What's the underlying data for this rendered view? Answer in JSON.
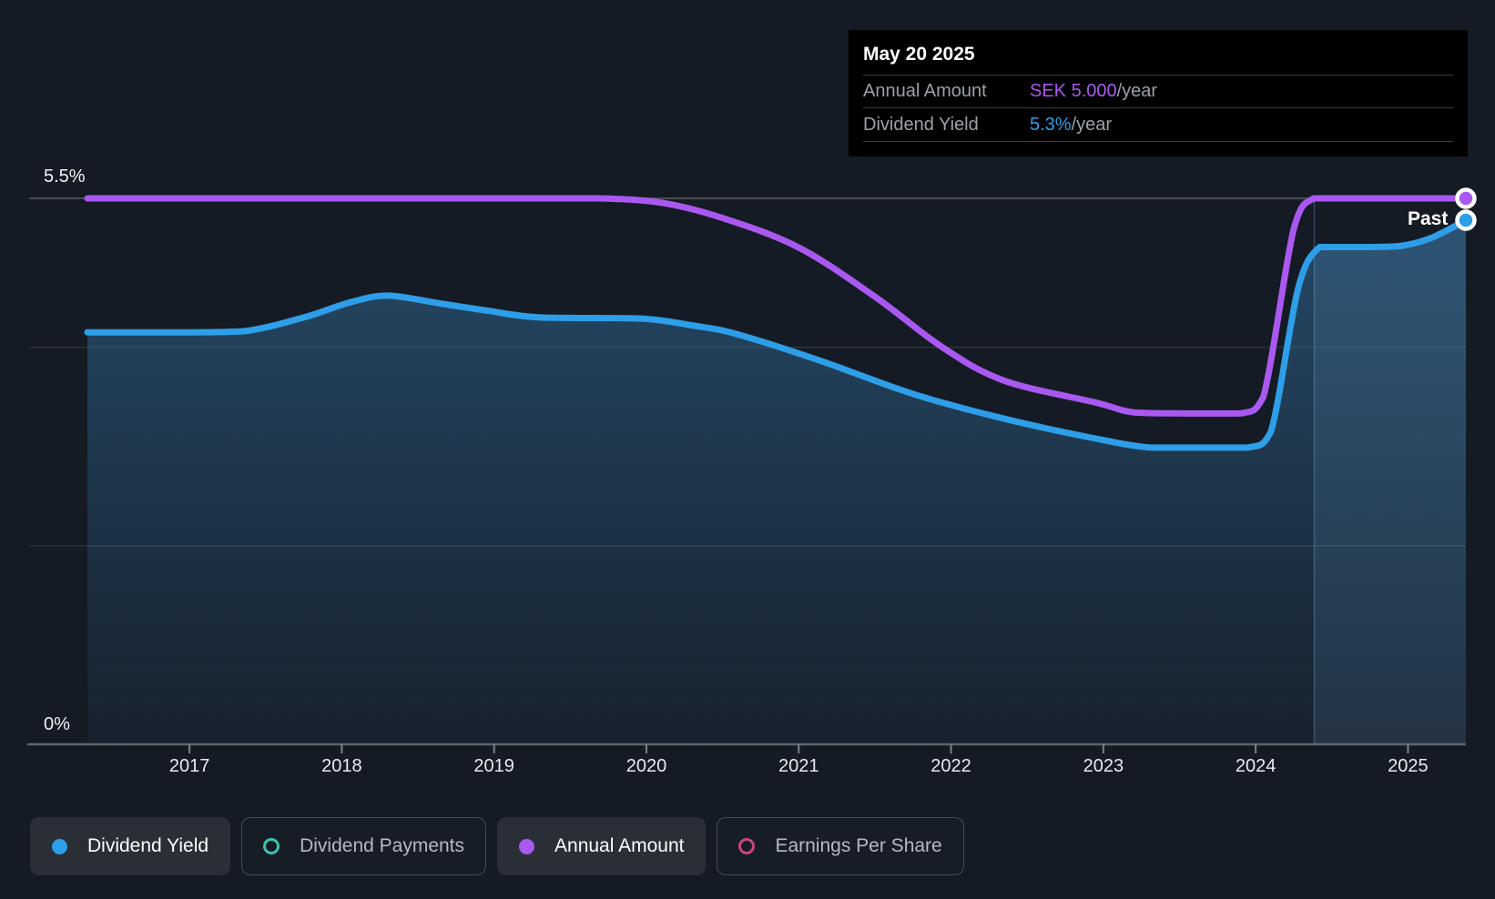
{
  "y_axis": {
    "top_label": "5.5%",
    "zero_label": "0%"
  },
  "tooltip": {
    "date": "May 20 2025",
    "rows": [
      {
        "label": "Annual Amount",
        "value": "SEK 5.000",
        "suffix": "/year",
        "color": "#A958F0"
      },
      {
        "label": "Dividend Yield",
        "value": "5.3%",
        "suffix": "/year",
        "color": "#2E9EE8"
      }
    ]
  },
  "legend": {
    "items": [
      {
        "label": "Dividend Yield",
        "color": "#2E9EE8",
        "marker": "filled",
        "active": true
      },
      {
        "label": "Dividend Payments",
        "color": "#3EC3B1",
        "marker": "ring",
        "active": false
      },
      {
        "label": "Annual Amount",
        "color": "#A958F0",
        "marker": "filled",
        "active": true
      },
      {
        "label": "Earnings Per Share",
        "color": "#C94580",
        "marker": "ring",
        "active": false
      }
    ]
  },
  "chart_data": {
    "type": "area",
    "past_label": "Past",
    "x_domain": [
      2016.33,
      2025.38
    ],
    "x_ticks": [
      "2017",
      "2018",
      "2019",
      "2020",
      "2021",
      "2022",
      "2023",
      "2024",
      "2025"
    ],
    "x_tick_values": [
      2017,
      2018,
      2019,
      2020,
      2021,
      2022,
      2023,
      2024,
      2025
    ],
    "axes": {
      "pct": {
        "min": 0,
        "max": 5.5
      },
      "sek": {
        "min": 0,
        "max": 5.0
      }
    },
    "y_tick_labels": [
      {
        "label": "5.5%",
        "value": 5.5
      },
      {
        "label": "0%",
        "value": 0
      }
    ],
    "gridlines": [
      {
        "value": 5.5,
        "strong": true
      },
      {
        "value": 4.0,
        "strong": false
      },
      {
        "value": 2.0,
        "strong": false
      }
    ],
    "divider_x": 2024.385,
    "hover_point": {
      "date": "May 20 2025",
      "annual_amount_sek": 5.0,
      "dividend_yield_pct": 5.3
    },
    "series": [
      {
        "name": "Dividend Yield",
        "unit": "%",
        "scale": "pct",
        "color": "#2E9EE8",
        "area": true,
        "points": [
          [
            2016.33,
            4.15
          ],
          [
            2016.9,
            4.15
          ],
          [
            2017.35,
            4.16
          ],
          [
            2017.75,
            4.3
          ],
          [
            2018.05,
            4.45
          ],
          [
            2018.3,
            4.52
          ],
          [
            2018.65,
            4.44
          ],
          [
            2018.95,
            4.37
          ],
          [
            2019.3,
            4.3
          ],
          [
            2019.95,
            4.29
          ],
          [
            2020.3,
            4.22
          ],
          [
            2020.6,
            4.13
          ],
          [
            2021.15,
            3.86
          ],
          [
            2021.75,
            3.53
          ],
          [
            2022.35,
            3.28
          ],
          [
            2022.95,
            3.08
          ],
          [
            2023.3,
            2.99
          ],
          [
            2023.6,
            2.99
          ],
          [
            2023.95,
            2.99
          ],
          [
            2024.1,
            3.15
          ],
          [
            2024.28,
            4.6
          ],
          [
            2024.42,
            5.01
          ],
          [
            2024.55,
            5.01
          ],
          [
            2024.75,
            5.01
          ],
          [
            2024.95,
            5.02
          ],
          [
            2025.15,
            5.1
          ],
          [
            2025.38,
            5.28
          ]
        ]
      },
      {
        "name": "Annual Amount",
        "unit": "SEK",
        "scale": "sek",
        "color": "#A958F0",
        "area": false,
        "points": [
          [
            2016.33,
            5.0
          ],
          [
            2017.5,
            5.0
          ],
          [
            2018.5,
            5.0
          ],
          [
            2019.3,
            5.0
          ],
          [
            2019.7,
            5.0
          ],
          [
            2020.1,
            4.96
          ],
          [
            2020.5,
            4.82
          ],
          [
            2021.0,
            4.55
          ],
          [
            2021.5,
            4.1
          ],
          [
            2021.95,
            3.63
          ],
          [
            2022.35,
            3.33
          ],
          [
            2022.95,
            3.13
          ],
          [
            2023.2,
            3.04
          ],
          [
            2023.55,
            3.03
          ],
          [
            2023.9,
            3.03
          ],
          [
            2024.05,
            3.18
          ],
          [
            2024.25,
            4.72
          ],
          [
            2024.38,
            5.0
          ],
          [
            2024.5,
            5.0
          ],
          [
            2024.8,
            5.0
          ],
          [
            2025.1,
            5.0
          ],
          [
            2025.38,
            5.0
          ]
        ]
      }
    ],
    "colors": {
      "background": "#151B24",
      "axis": "#5B6573",
      "tick": "#7A838E",
      "grid_strong": "rgba(255,255,255,0.22)",
      "grid_soft": "rgba(255,255,255,0.10)",
      "divider": "rgba(150,195,230,0.28)",
      "marker_ring": "#FFFFFF"
    }
  }
}
